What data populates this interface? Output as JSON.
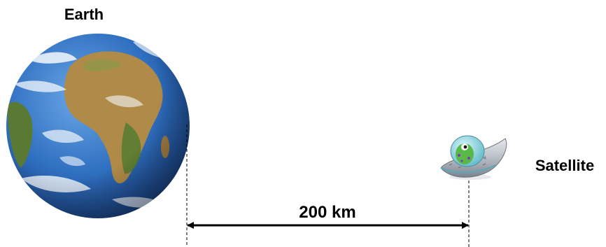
{
  "labels": {
    "earth": "Earth",
    "satellite": "Satellite",
    "distance": "200 km"
  },
  "colors": {
    "ocean": "#2f6fc0",
    "ocean_dark": "#14356e",
    "land": "#b08a48",
    "land_green": "#4d7a2e",
    "cloud": "#f4f8fc",
    "saucer_hull": "#b9bec6",
    "saucer_dome": "#7fd1de",
    "alien": "#59b848",
    "arrow": "#000000"
  },
  "icons": {
    "earth": "earth-globe-icon",
    "satellite": "flying-saucer-icon"
  }
}
